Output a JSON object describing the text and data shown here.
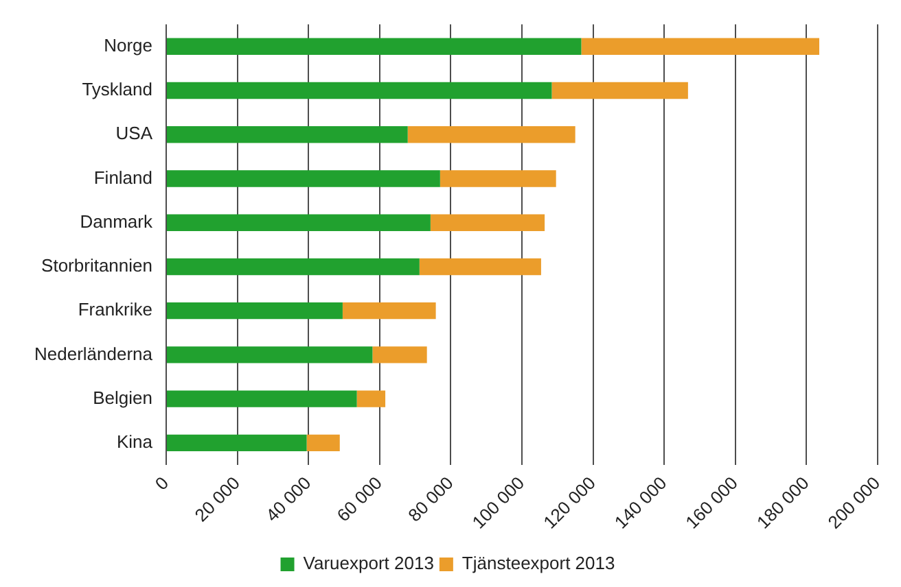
{
  "chart_data": {
    "type": "bar",
    "orientation": "horizontal",
    "stacked": true,
    "categories": [
      "Norge",
      "Tyskland",
      "USA",
      "Finland",
      "Danmark",
      "Storbritannien",
      "Frankrike",
      "Nederländerna",
      "Belgien",
      "Kina"
    ],
    "series": [
      {
        "name": "Varuexport 2013",
        "color": "#21a12f",
        "values": [
          116700,
          108400,
          67900,
          77000,
          74300,
          71200,
          49600,
          58000,
          53600,
          39500
        ]
      },
      {
        "name": "Tjänsteexport 2013",
        "color": "#eb9d2b",
        "values": [
          66900,
          38300,
          47100,
          32600,
          32100,
          34200,
          26200,
          15300,
          8000,
          9300
        ]
      }
    ],
    "xlim": [
      0,
      200000
    ],
    "xticks": [
      0,
      {
        "value": 20000,
        "label": "20 000"
      },
      {
        "value": 40000,
        "label": "40 000"
      },
      {
        "value": 60000,
        "label": "60 000"
      },
      {
        "value": 80000,
        "label": "80 000"
      },
      {
        "value": 100000,
        "label": "100 000"
      },
      {
        "value": 120000,
        "label": "120 000"
      },
      {
        "value": 140000,
        "label": "140 000"
      },
      {
        "value": 160000,
        "label": "160 000"
      },
      {
        "value": 180000,
        "label": "180 000"
      },
      {
        "value": 200000,
        "label": "200 000"
      }
    ],
    "grid": "x",
    "legend": "bottom"
  }
}
